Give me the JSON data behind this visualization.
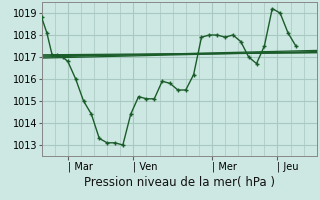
{
  "background_color": "#cde8e2",
  "grid_color": "#a8c8c0",
  "line_color": "#1a5c2a",
  "marker_color": "#1a5c2a",
  "ylabel_ticks": [
    1013,
    1014,
    1015,
    1016,
    1017,
    1018,
    1019
  ],
  "ylim": [
    1012.5,
    1019.5
  ],
  "xlabel": "Pression niveau de la mer( hPa )",
  "day_labels": [
    "| Mar",
    "| Ven",
    "| Mer",
    "| Jeu"
  ],
  "day_positions": [
    1.0,
    3.5,
    6.5,
    9.0
  ],
  "xlim": [
    0,
    10.5
  ],
  "series1_x": [
    0.0,
    0.2,
    0.4,
    0.6,
    0.8,
    1.0,
    1.3,
    1.6,
    1.9,
    2.2,
    2.5,
    2.8,
    3.1,
    3.4,
    3.7,
    4.0,
    4.3,
    4.6,
    4.9,
    5.2,
    5.5,
    5.8,
    6.1,
    6.4,
    6.7,
    7.0,
    7.3,
    7.6,
    7.9,
    8.2,
    8.5,
    8.8,
    9.1,
    9.4,
    9.7
  ],
  "series1_y": [
    1018.8,
    1018.1,
    1017.1,
    1017.1,
    1017.0,
    1016.8,
    1016.0,
    1015.0,
    1014.4,
    1013.3,
    1013.1,
    1013.1,
    1013.0,
    1014.4,
    1015.2,
    1015.1,
    1015.1,
    1015.9,
    1015.8,
    1015.5,
    1015.5,
    1016.2,
    1017.9,
    1018.0,
    1018.0,
    1017.9,
    1018.0,
    1017.7,
    1017.0,
    1016.7,
    1017.5,
    1019.2,
    1019.0,
    1018.1,
    1017.5
  ],
  "flat_lines": [
    {
      "x": [
        0.0,
        10.5
      ],
      "y": [
        1017.05,
        1017.2
      ]
    },
    {
      "x": [
        0.0,
        10.5
      ],
      "y": [
        1017.1,
        1017.2
      ]
    },
    {
      "x": [
        0.0,
        10.5
      ],
      "y": [
        1017.0,
        1017.3
      ]
    },
    {
      "x": [
        0.0,
        10.5
      ],
      "y": [
        1016.95,
        1017.25
      ]
    }
  ],
  "vline_positions": [
    0.0,
    1.0,
    3.5,
    6.5,
    9.0
  ],
  "tick_fontsize": 7,
  "xlabel_fontsize": 8.5
}
